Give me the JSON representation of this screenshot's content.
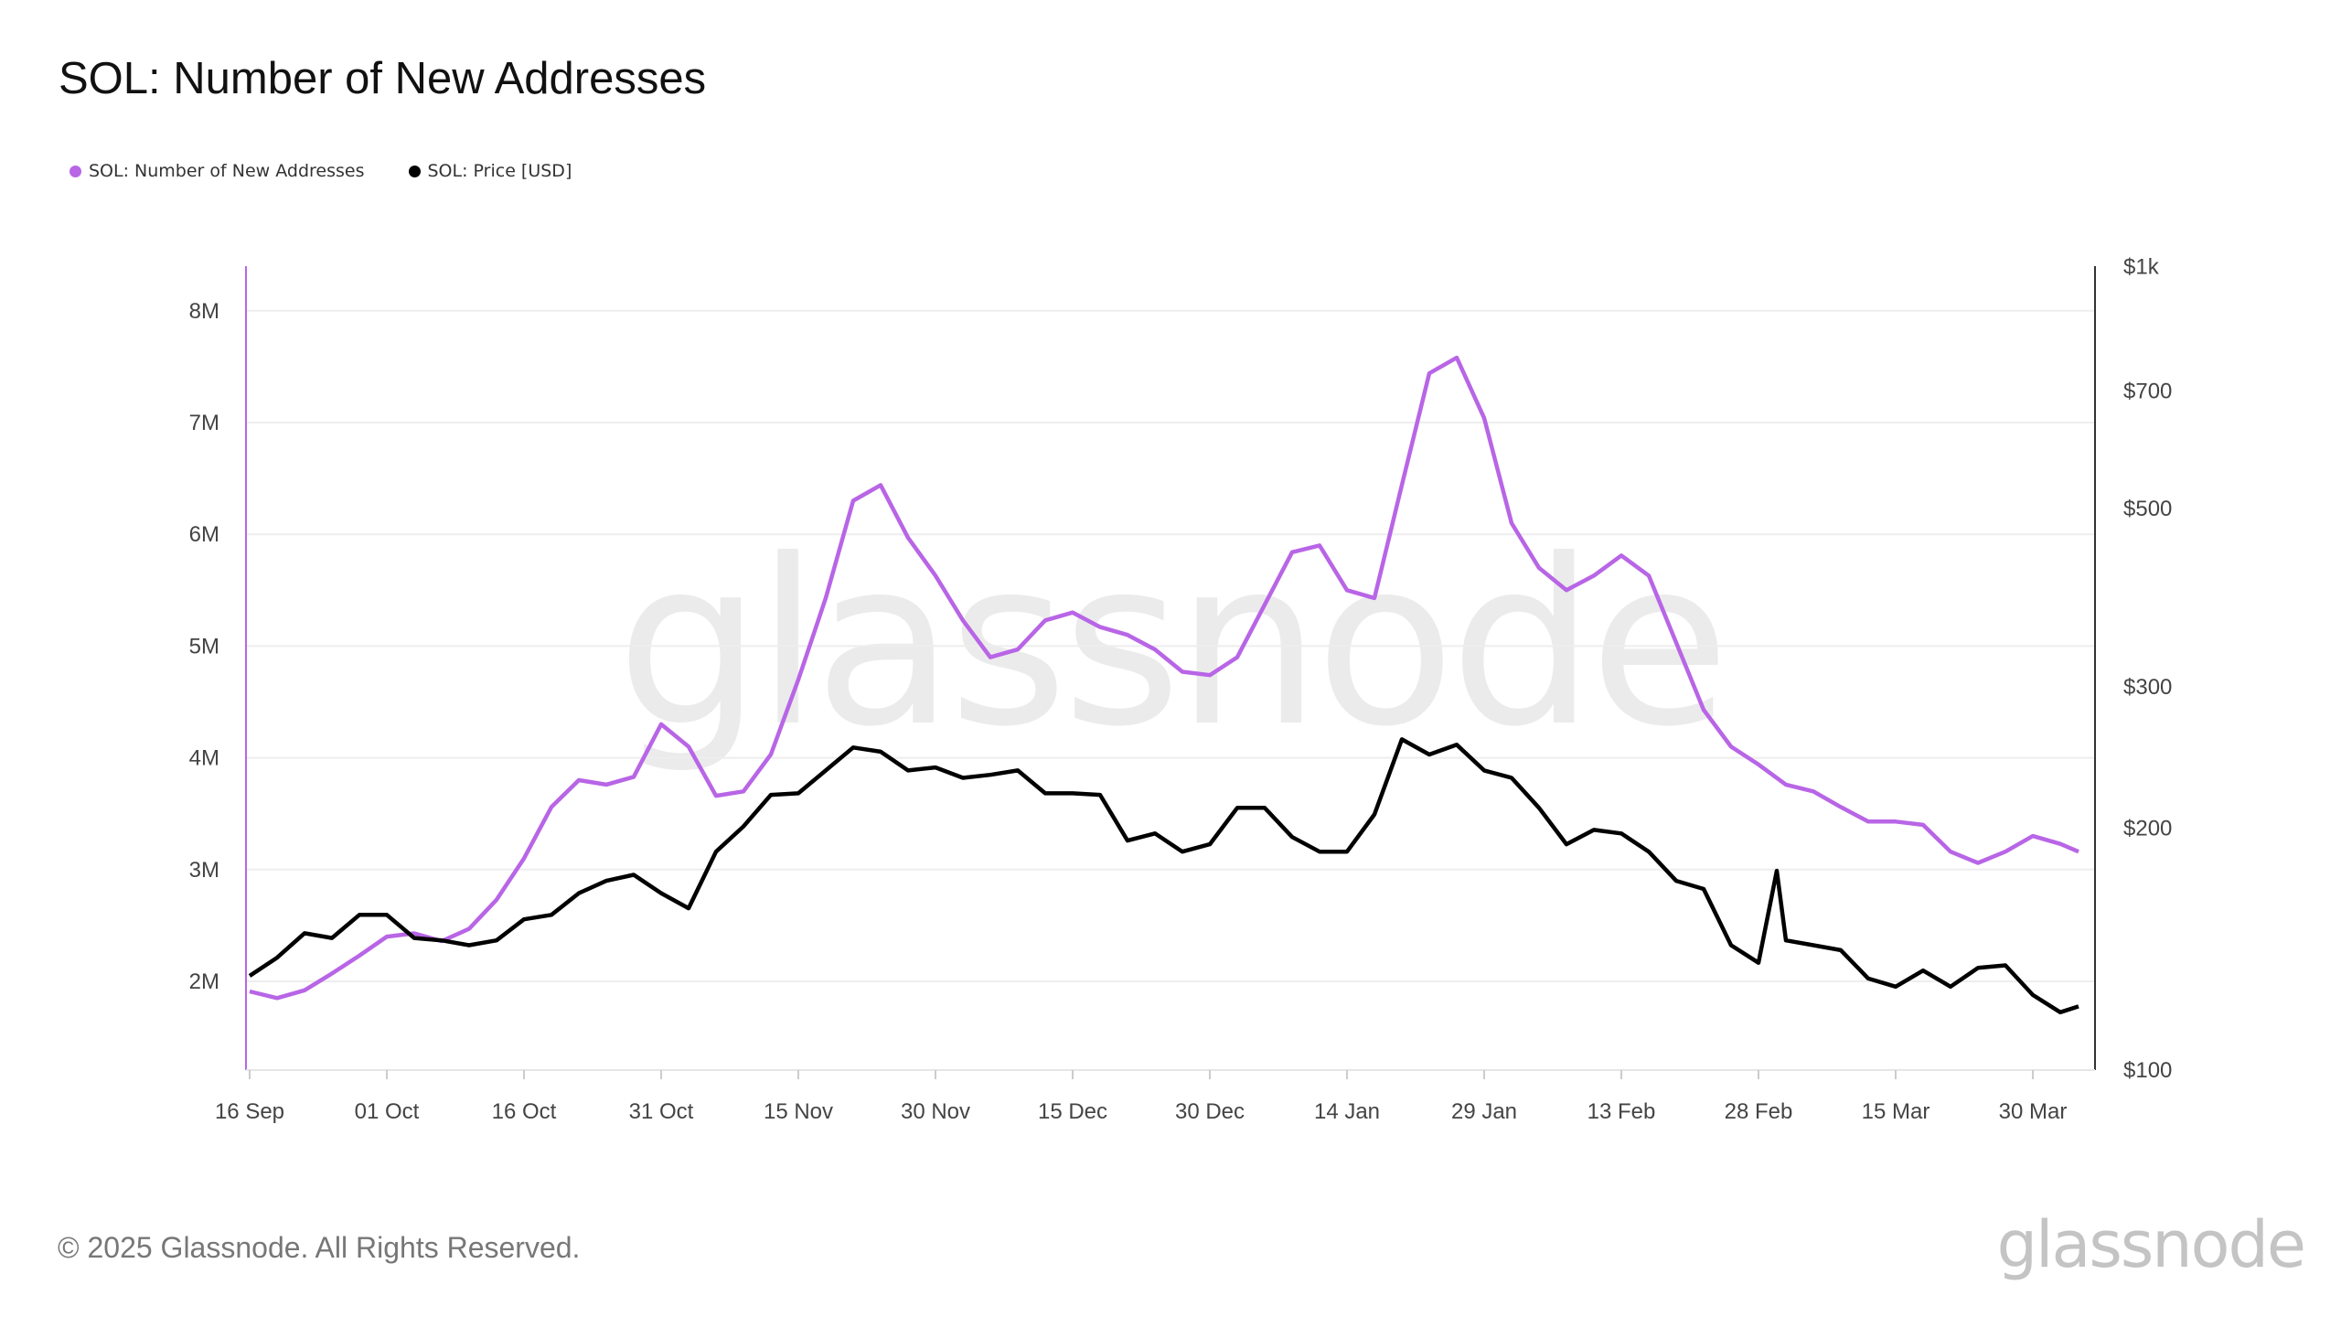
{
  "title": "SOL: Number of New Addresses",
  "legend": [
    {
      "label": "SOL: Number of New Addresses",
      "color": "#B865E6"
    },
    {
      "label": "SOL: Price [USD]",
      "color": "#000000"
    }
  ],
  "footer": "© 2025 Glassnode. All Rights Reserved.",
  "logo": "glassnode",
  "watermark": "glassnode",
  "chart_data": {
    "type": "line",
    "title": "SOL: Number of New Addresses",
    "grid": true,
    "legend_position": "top-left",
    "x": [
      "2024-09-16",
      "2024-09-19",
      "2024-09-22",
      "2024-09-25",
      "2024-09-28",
      "2024-10-01",
      "2024-10-04",
      "2024-10-07",
      "2024-10-10",
      "2024-10-13",
      "2024-10-16",
      "2024-10-19",
      "2024-10-22",
      "2024-10-25",
      "2024-10-28",
      "2024-10-31",
      "2024-11-03",
      "2024-11-06",
      "2024-11-09",
      "2024-11-12",
      "2024-11-15",
      "2024-11-18",
      "2024-11-21",
      "2024-11-24",
      "2024-11-27",
      "2024-11-30",
      "2024-12-03",
      "2024-12-06",
      "2024-12-09",
      "2024-12-12",
      "2024-12-15",
      "2024-12-18",
      "2024-12-21",
      "2024-12-24",
      "2024-12-27",
      "2024-12-30",
      "2025-01-02",
      "2025-01-05",
      "2025-01-08",
      "2025-01-11",
      "2025-01-14",
      "2025-01-17",
      "2025-01-20",
      "2025-01-23",
      "2025-01-26",
      "2025-01-29",
      "2025-02-01",
      "2025-02-04",
      "2025-02-07",
      "2025-02-10",
      "2025-02-13",
      "2025-02-16",
      "2025-02-19",
      "2025-02-22",
      "2025-02-25",
      "2025-02-28",
      "2025-03-02",
      "2025-03-03",
      "2025-03-06",
      "2025-03-09",
      "2025-03-12",
      "2025-03-15",
      "2025-03-18",
      "2025-03-21",
      "2025-03-24",
      "2025-03-27",
      "2025-03-30",
      "2025-04-02",
      "2025-04-04"
    ],
    "x_ticks": [
      "16 Sep",
      "01 Oct",
      "16 Oct",
      "31 Oct",
      "15 Nov",
      "30 Nov",
      "15 Dec",
      "30 Dec",
      "14 Jan",
      "29 Jan",
      "13 Feb",
      "28 Feb",
      "15 Mar",
      "30 Mar"
    ],
    "x_tick_dates": [
      "2024-09-16",
      "2024-10-01",
      "2024-10-16",
      "2024-10-31",
      "2024-11-15",
      "2024-11-30",
      "2024-12-15",
      "2024-12-30",
      "2025-01-14",
      "2025-01-29",
      "2025-02-13",
      "2025-02-28",
      "2025-03-15",
      "2025-03-30"
    ],
    "y_left": {
      "ticks": [
        "2M",
        "3M",
        "4M",
        "5M",
        "6M",
        "7M",
        "8M"
      ],
      "tick_values": [
        2,
        3,
        4,
        5,
        6,
        7,
        8
      ],
      "unit": "M",
      "range": [
        1.2,
        8.4
      ]
    },
    "y_right": {
      "scale": "log",
      "ticks": [
        "$100",
        "$200",
        "$300",
        "$500",
        "$700",
        "$1k"
      ],
      "tick_values": [
        100,
        200,
        300,
        500,
        700,
        1000
      ],
      "range": [
        100,
        1000
      ]
    },
    "series": [
      {
        "name": "SOL: Number of New Addresses",
        "axis": "left",
        "color": "#B865E6",
        "values": [
          1.91,
          1.85,
          1.92,
          2.07,
          2.23,
          2.4,
          2.43,
          2.36,
          2.47,
          2.73,
          3.1,
          3.56,
          3.8,
          3.76,
          3.83,
          4.3,
          4.1,
          3.66,
          3.7,
          4.03,
          4.7,
          5.43,
          6.3,
          6.44,
          5.97,
          5.63,
          5.23,
          4.9,
          4.97,
          5.23,
          5.3,
          5.17,
          5.1,
          4.97,
          4.77,
          4.74,
          4.9,
          5.37,
          5.84,
          5.9,
          5.5,
          5.43,
          6.44,
          7.44,
          7.58,
          7.04,
          6.1,
          5.7,
          5.5,
          5.63,
          5.81,
          5.63,
          5.03,
          4.43,
          4.1,
          3.94,
          3.82,
          3.76,
          3.7,
          3.56,
          3.43,
          3.43,
          3.4,
          3.16,
          3.06,
          3.16,
          3.3,
          3.23,
          3.16
        ]
      },
      {
        "name": "SOL: Price [USD]",
        "axis": "right",
        "color": "#000000",
        "values": [
          131,
          138,
          148,
          146,
          156,
          156,
          146,
          145,
          143,
          145,
          154,
          156,
          166,
          172,
          175,
          166,
          159,
          187,
          201,
          220,
          221,
          236,
          252,
          249,
          236,
          238,
          231,
          233,
          236,
          221,
          221,
          220,
          193,
          197,
          187,
          191,
          212,
          212,
          195,
          187,
          187,
          208,
          258,
          247,
          254,
          236,
          231,
          212,
          191,
          199,
          197,
          187,
          172,
          168,
          143,
          136,
          177,
          145,
          143,
          141,
          130,
          127,
          133,
          127,
          134,
          135,
          124,
          118,
          120
        ]
      }
    ]
  }
}
